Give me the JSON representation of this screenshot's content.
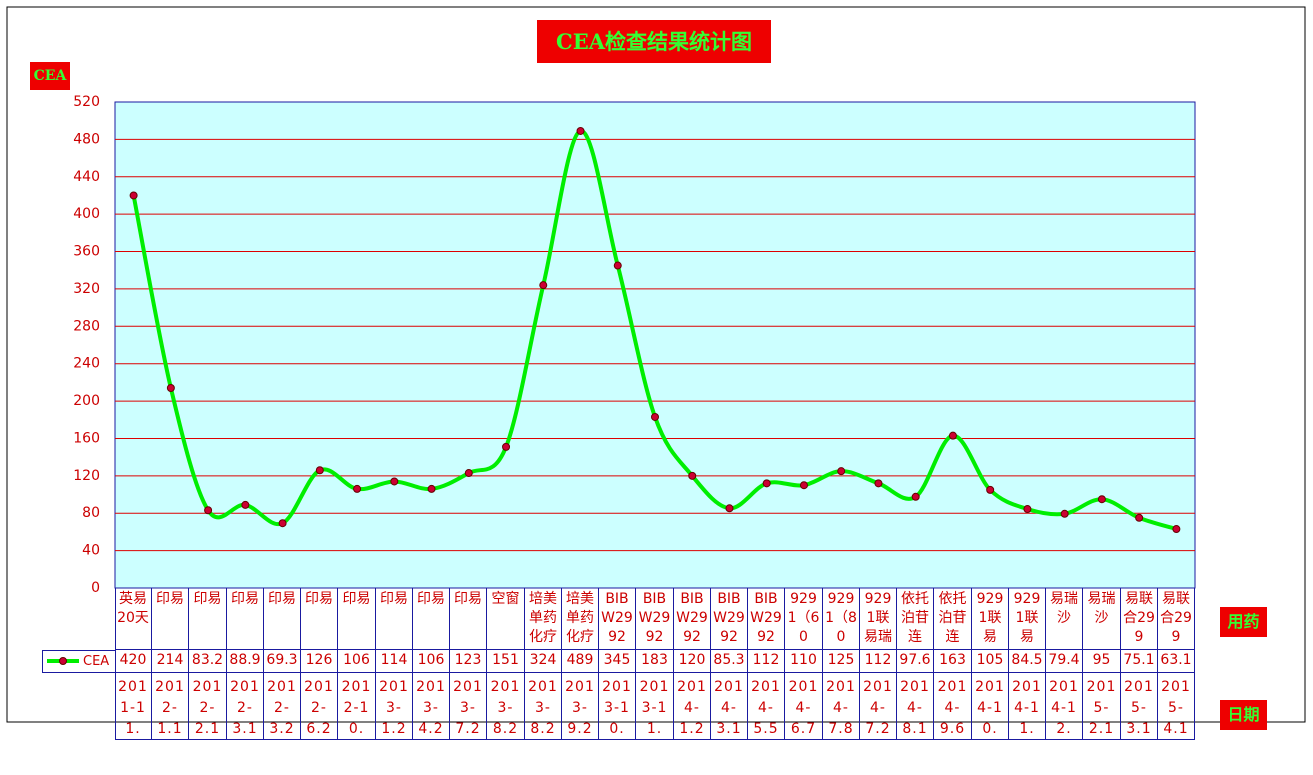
{
  "chart_data": {
    "type": "line",
    "title": "CEA检查结果统计图",
    "y_label": "CEA",
    "x_label": "用药",
    "date_label": "日期",
    "categories": [
      "英易20天",
      "印易",
      "印易",
      "印易",
      "印易",
      "印易",
      "印易",
      "印易",
      "印易",
      "印易",
      "空窗",
      "培美单药化疗",
      "培美单药化疗",
      "BIBW2992",
      "BIBW2992",
      "BIBW2992",
      "BIBW2992",
      "BIBW2992",
      "9291（60",
      "9291（80",
      "9291联易瑞",
      "依托泊苷连",
      "依托泊苷连",
      "9291联易",
      "9291联易",
      "易瑞沙",
      "易瑞沙",
      "易联合299",
      "易联合299"
    ],
    "dates": [
      "2011-11.",
      "2012-1.1",
      "2012-2.1",
      "2012-3.1",
      "2012-3.2",
      "2012-6.2",
      "2012-10.",
      "2013-1.2",
      "2013-4.2",
      "2013-7.2",
      "2013-8.2",
      "2013-8.2",
      "2013-9.2",
      "2013-10.",
      "2013-11.",
      "2014-1.2",
      "2014-3.1",
      "2014-5.5",
      "2014-6.7",
      "2014-7.8",
      "2014-7.2",
      "2014-8.1",
      "2014-9.6",
      "2014-10.",
      "2014-11.",
      "2014-12.",
      "2015-2.1",
      "2015-3.1",
      "2015-4.1"
    ],
    "series": [
      {
        "name": "CEA",
        "color": "#00ee00",
        "marker_color": "#cc0033",
        "values": [
          420,
          214,
          83.2,
          88.9,
          69.3,
          126,
          106,
          114,
          106,
          123,
          151,
          324,
          489,
          345,
          183,
          120,
          85.3,
          112,
          110,
          125,
          112,
          97.6,
          163,
          105,
          84.5,
          79.4,
          95,
          75.1,
          63.1
        ]
      }
    ],
    "ylim": [
      0,
      520
    ],
    "yticks": [
      0,
      40,
      80,
      120,
      160,
      200,
      240,
      280,
      320,
      360,
      400,
      440,
      480,
      520
    ],
    "grid": true
  }
}
